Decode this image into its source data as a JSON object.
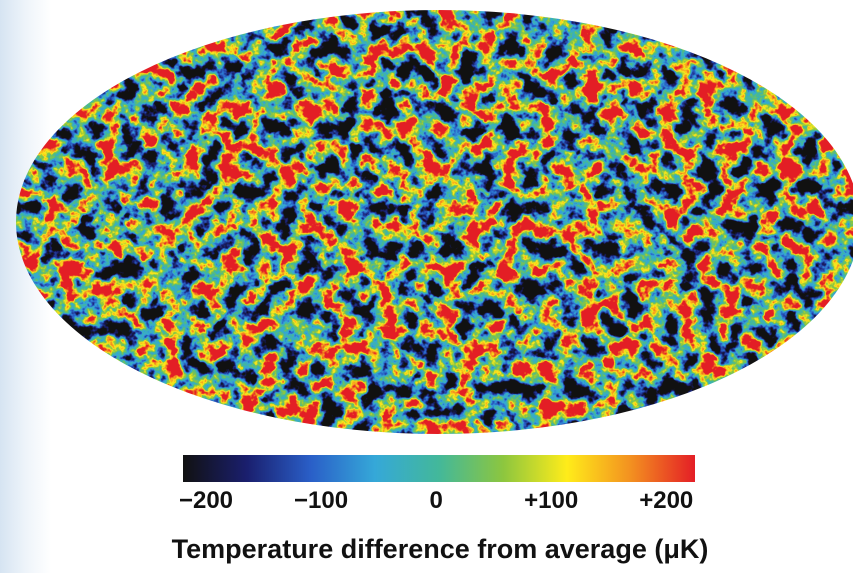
{
  "colorbar": {
    "clim": [
      -220,
      225
    ],
    "ticks": [
      {
        "value": -200,
        "label": "−200"
      },
      {
        "value": -100,
        "label": "−100"
      },
      0,
      {
        "value": 100,
        "label": "+100"
      },
      {
        "value": 200,
        "label": "+200"
      }
    ],
    "colors": [
      "#111111",
      "#1a1f6e",
      "#2a5fc8",
      "#35a8d8",
      "#43b89a",
      "#8cc63f",
      "#ffec1a",
      "#f39020",
      "#e41e26"
    ],
    "label": "Temperature difference from average (μK)"
  }
}
